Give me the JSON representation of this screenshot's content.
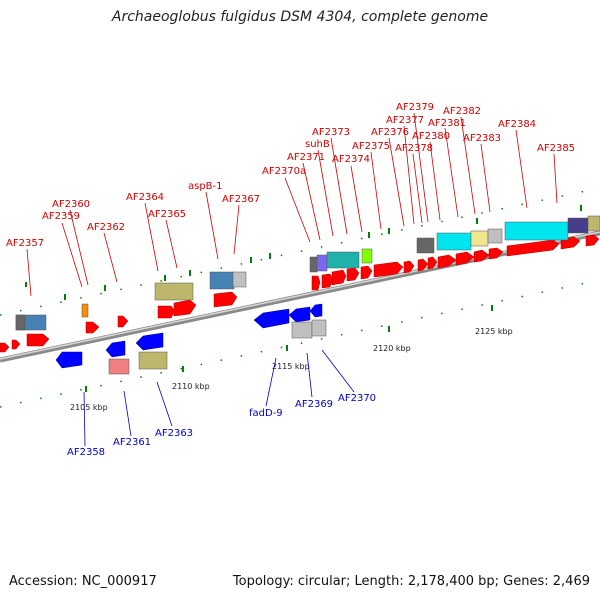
{
  "title": "Archaeoglobus fulgidus DSM 4304, complete genome",
  "footer": {
    "accession": "Accession: NC_000917",
    "summary": "Topology: circular; Length: 2,178,400 bp; Genes: 2,469"
  },
  "colors": {
    "forward_label": "#d00000",
    "reverse_label": "#0000c0",
    "forward_gene": "#ff0000",
    "reverse_gene": "#0000ff",
    "tick": "#008000",
    "backbone": "#9a9a9a"
  },
  "scale": {
    "ticks": [
      {
        "label": "2105 kbp"
      },
      {
        "label": "2110 kbp"
      },
      {
        "label": "2115 kbp"
      },
      {
        "label": "2120 kbp"
      },
      {
        "label": "2125 kbp"
      }
    ]
  },
  "forward_labels": [
    {
      "text": "AF2357"
    },
    {
      "text": "AF2359"
    },
    {
      "text": "AF2360"
    },
    {
      "text": "AF2362"
    },
    {
      "text": "AF2364"
    },
    {
      "text": "AF2365"
    },
    {
      "text": "aspB-1"
    },
    {
      "text": "AF2367"
    },
    {
      "text": "AF2370a"
    },
    {
      "text": "AF2371"
    },
    {
      "text": "suhB"
    },
    {
      "text": "AF2373"
    },
    {
      "text": "AF2374"
    },
    {
      "text": "AF2375"
    },
    {
      "text": "AF2376"
    },
    {
      "text": "AF2377"
    },
    {
      "text": "AF2378"
    },
    {
      "text": "AF2379"
    },
    {
      "text": "AF2380"
    },
    {
      "text": "AF2381"
    },
    {
      "text": "AF2382"
    },
    {
      "text": "AF2383"
    },
    {
      "text": "AF2384"
    },
    {
      "text": "AF2385"
    }
  ],
  "reverse_labels": [
    {
      "text": "AF2358"
    },
    {
      "text": "AF2361"
    },
    {
      "text": "AF2363"
    },
    {
      "text": "fadD-9"
    },
    {
      "text": "AF2369"
    },
    {
      "text": "AF2370"
    }
  ]
}
